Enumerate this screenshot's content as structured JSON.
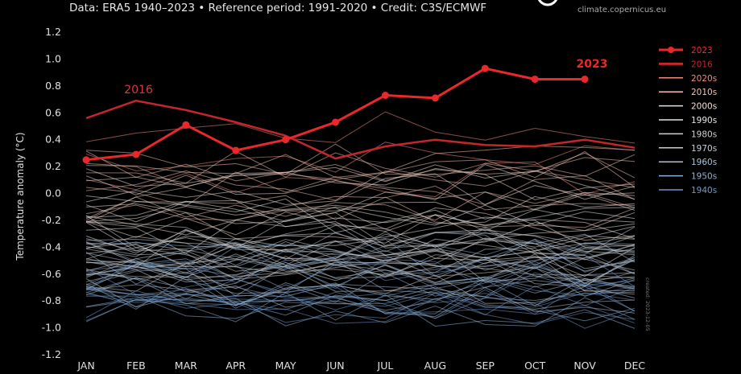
{
  "header": {
    "source_line": "Data: ERA5 1940–2023 • Reference period: 1991-2020 • Credit: C3S/ECMWF",
    "logo_url": "climate.copernicus.eu",
    "logo_icon": "copernicus-logo-icon"
  },
  "watermark": "created: 2023-12-05",
  "chart_data": {
    "type": "line",
    "title": "",
    "xlabel": "",
    "ylabel": "Temperature anomaly (°C)",
    "categories": [
      "JAN",
      "FEB",
      "MAR",
      "APR",
      "MAY",
      "JUN",
      "JUL",
      "AUG",
      "SEP",
      "OCT",
      "NOV",
      "DEC"
    ],
    "ylim": [
      -1.2,
      1.2
    ],
    "yticks": [
      -1.2,
      -1.0,
      -0.8,
      -0.6,
      -0.4,
      -0.2,
      0.0,
      0.2,
      0.4,
      0.6,
      0.8,
      1.0,
      1.2
    ],
    "ytick_labels": [
      "-1.2",
      "-1.0",
      "-0.8",
      "-0.6",
      "-0.4",
      "-0.2",
      "0.0",
      "0.2",
      "0.4",
      "0.6",
      "0.8",
      "1.0",
      "1.2"
    ],
    "grid": false,
    "legend_position": "right",
    "series": [
      {
        "name": "2023",
        "color": "#e8282b",
        "marker": true,
        "label": "2023",
        "values": [
          0.25,
          0.29,
          0.51,
          0.32,
          0.4,
          0.53,
          0.73,
          0.71,
          0.93,
          0.85,
          0.85,
          null
        ]
      },
      {
        "name": "2016",
        "color": "#c4262b",
        "marker": false,
        "label": "2016",
        "values": [
          0.56,
          0.69,
          0.62,
          0.53,
          0.43,
          0.26,
          0.35,
          0.4,
          0.36,
          0.35,
          0.4,
          0.34
        ]
      }
    ],
    "decades": [
      {
        "name": "2020s",
        "color": "#f08c7e",
        "center": 0.28
      },
      {
        "name": "2010s",
        "color": "#f2c3b4",
        "center": 0.08
      },
      {
        "name": "2000s",
        "color": "#f1ddd6",
        "center": -0.12
      },
      {
        "name": "1990s",
        "color": "#e4e4e4",
        "center": -0.3
      },
      {
        "name": "1980s",
        "color": "#d0d0d0",
        "center": -0.42
      },
      {
        "name": "1970s",
        "color": "#c6ced8",
        "center": -0.55
      },
      {
        "name": "1960s",
        "color": "#a9c2dc",
        "center": -0.62
      },
      {
        "name": "1950s",
        "color": "#8db2d8",
        "center": -0.66
      },
      {
        "name": "1940s",
        "color": "#6d96c8",
        "center": -0.7
      }
    ]
  }
}
